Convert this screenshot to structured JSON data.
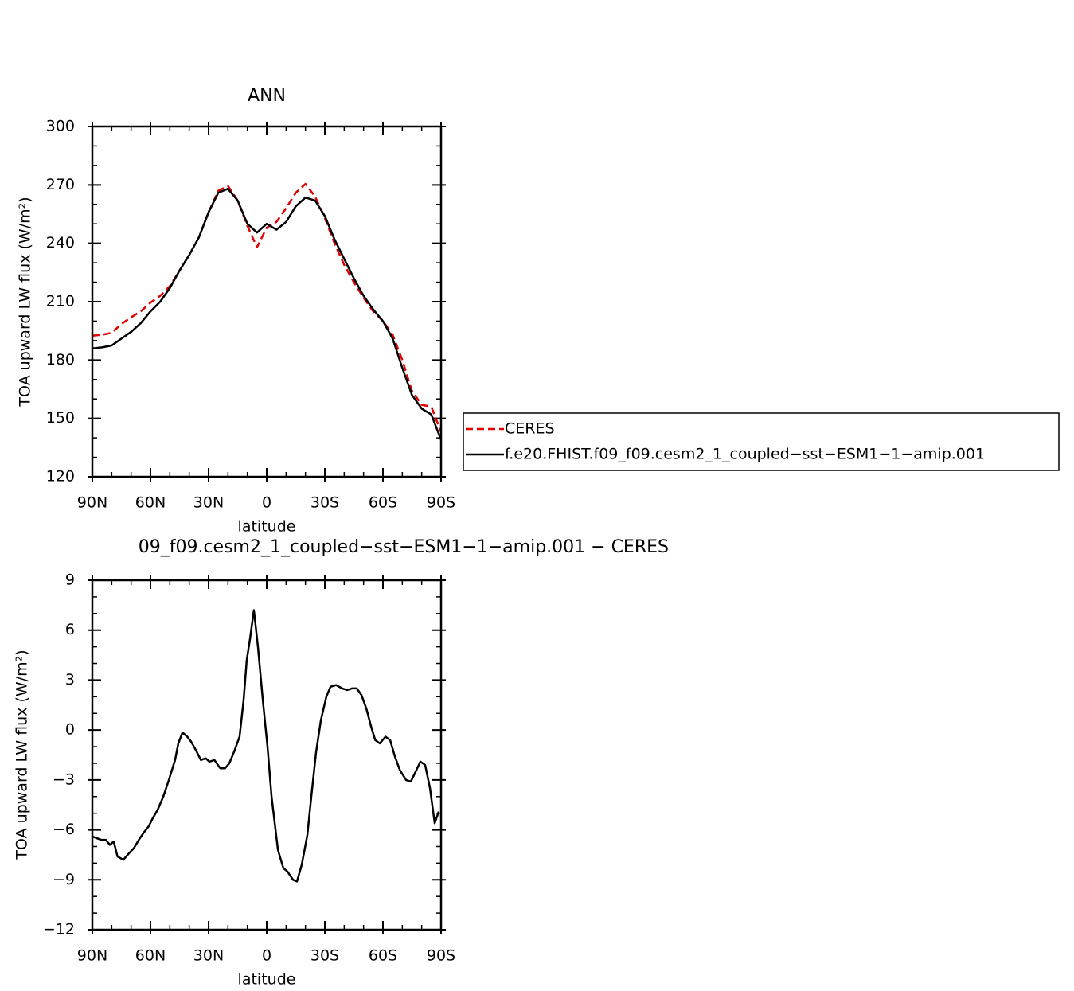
{
  "chart_data": [
    {
      "type": "line",
      "title": "ANN",
      "xlabel": "latitude",
      "ylabel": "TOA upward LW flux (W/m²)",
      "x": [
        90,
        85,
        80,
        75,
        70,
        65,
        60,
        55,
        50,
        45,
        40,
        35,
        30,
        25,
        20,
        15,
        10,
        5,
        0,
        -5,
        -10,
        -15,
        -20,
        -25,
        -30,
        -35,
        -40,
        -45,
        -50,
        -55,
        -60,
        -65,
        -70,
        -75,
        -80,
        -85,
        -90
      ],
      "series": [
        {
          "name": "CERES",
          "color": "#e00000",
          "dashed": true,
          "values": [
            192.5,
            193,
            194,
            198.5,
            202,
            205,
            209.5,
            213,
            218,
            226,
            234,
            243,
            256,
            267,
            269.5,
            262,
            249,
            238,
            248,
            251,
            258,
            266,
            270.5,
            264,
            253,
            240,
            229,
            220,
            212,
            205,
            200,
            193,
            180,
            164,
            157,
            156,
            143
          ]
        },
        {
          "name": "f.e20.FHIST.f09_f09.cesm2_1_coupled−sst−ESM1−1−amip.001",
          "color": "#000000",
          "dashed": false,
          "values": [
            186,
            186.5,
            187.5,
            191,
            194.5,
            199,
            205,
            210,
            217,
            226,
            234,
            243,
            256,
            266,
            268,
            262,
            250,
            245.5,
            250,
            247,
            251,
            259,
            263.5,
            262,
            254,
            242,
            232,
            222,
            213,
            206,
            200,
            191,
            176,
            162,
            155,
            152,
            139
          ]
        }
      ],
      "xlim": [
        90,
        -90
      ],
      "xticks": [
        {
          "value": 90,
          "label": "90N"
        },
        {
          "value": 60,
          "label": "60N"
        },
        {
          "value": 30,
          "label": "30N"
        },
        0,
        {
          "value": -30,
          "label": "30S"
        },
        {
          "value": -60,
          "label": "60S"
        },
        {
          "value": -90,
          "label": "90S"
        }
      ],
      "ylim": [
        120,
        300
      ],
      "yticks": [
        120,
        150,
        180,
        210,
        240,
        270,
        300
      ]
    },
    {
      "type": "line",
      "title": "09_f09.cesm2_1_coupled−sst−ESM1−1−amip.001 − CERES",
      "xlabel": "latitude",
      "ylabel": "TOA upward LW flux (W/m²)",
      "x": [
        90,
        85.5,
        83,
        81,
        79,
        77,
        74,
        71,
        68.6,
        66,
        63.7,
        61,
        58.8,
        56.3,
        53.4,
        50.5,
        47.3,
        45.6,
        43.5,
        41,
        39,
        36.6,
        34,
        31.5,
        29.6,
        27,
        24,
        21.5,
        19.3,
        16.8,
        14,
        11.9,
        10.3,
        8.6,
        6.6,
        4.5,
        2,
        -0.4,
        -2.5,
        -5.8,
        -8.6,
        -10.7,
        -13.6,
        -15.6,
        -18.1,
        -21,
        -23,
        -25.5,
        -28,
        -30.8,
        -32.9,
        -35.8,
        -39,
        -41.5,
        -44,
        -46.5,
        -48.9,
        -51.4,
        -53.9,
        -56,
        -58.4,
        -61.3,
        -63.7,
        -66.2,
        -68.7,
        -71.9,
        -74.4,
        -76.9,
        -79.3,
        -81.8,
        -84.3,
        -86.7,
        -88.8
      ],
      "values": [
        -6.4,
        -6.6,
        -6.6,
        -6.9,
        -6.7,
        -7.6,
        -7.8,
        -7.4,
        -7.1,
        -6.6,
        -6.2,
        -5.8,
        -5.3,
        -4.8,
        -4.0,
        -3.0,
        -1.8,
        -0.8,
        -0.15,
        -0.4,
        -0.7,
        -1.2,
        -1.8,
        -1.7,
        -1.9,
        -1.8,
        -2.3,
        -2.3,
        -2.0,
        -1.3,
        -0.4,
        1.8,
        4.2,
        5.5,
        7.2,
        5.0,
        1.8,
        -1.0,
        -4.0,
        -7.2,
        -8.3,
        -8.5,
        -9.0,
        -9.1,
        -8.1,
        -6.3,
        -4.0,
        -1.3,
        0.6,
        2.0,
        2.6,
        2.7,
        2.5,
        2.4,
        2.5,
        2.5,
        2.1,
        1.3,
        0.2,
        -0.6,
        -0.8,
        -0.4,
        -0.6,
        -1.6,
        -2.4,
        -3.0,
        -3.1,
        -2.5,
        -1.9,
        -2.1,
        -3.5,
        -5.6,
        -4.9
      ],
      "color": "#000000",
      "xlim": [
        90,
        -90
      ],
      "xticks": [
        {
          "value": 90,
          "label": "90N"
        },
        {
          "value": 60,
          "label": "60N"
        },
        {
          "value": 30,
          "label": "30N"
        },
        0,
        {
          "value": -30,
          "label": "30S"
        },
        {
          "value": -60,
          "label": "60S"
        },
        {
          "value": -90,
          "label": "90S"
        }
      ],
      "ylim": [
        -12,
        9
      ],
      "yticks": [
        {
          "value": -12,
          "label": "−12"
        },
        {
          "value": -9,
          "label": "−9"
        },
        {
          "value": -6,
          "label": "−6"
        },
        {
          "value": -3,
          "label": "−3"
        },
        0,
        3,
        6,
        9
      ]
    }
  ]
}
